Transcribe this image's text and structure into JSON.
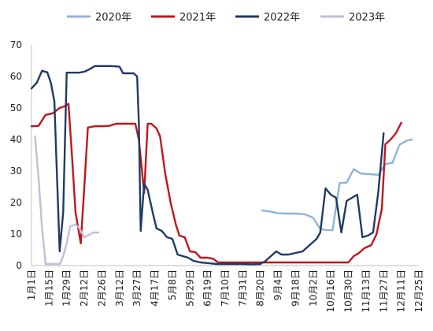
{
  "chart_data": {
    "type": "line",
    "title": "",
    "xlabel": "",
    "ylabel": "",
    "ylim": [
      0,
      70
    ],
    "yticks": [
      "0",
      "10",
      "20",
      "30",
      "40",
      "50",
      "60",
      "70"
    ],
    "categories": [
      "1月1日",
      "1月15日",
      "1月29日",
      "2月12日",
      "2月26日",
      "3月12日",
      "3月27日",
      "4月17日",
      "5月8日",
      "5月29日",
      "6月19日",
      "7月10日",
      "7月31日",
      "8月20日",
      "9月4日",
      "9月18日",
      "10月2日",
      "10月16日",
      "10月30日",
      "11月13日",
      "11月27日",
      "12月11日",
      "12月25日"
    ],
    "legend_position": "top",
    "grid": false,
    "series": [
      {
        "name": "2020年",
        "color": "#8fb4d9",
        "points": [
          [
            13.1,
            17.5
          ],
          [
            13.5,
            17.2
          ],
          [
            14.0,
            16.6
          ],
          [
            14.5,
            16.5
          ],
          [
            15.0,
            16.5
          ],
          [
            15.5,
            16.3
          ],
          [
            16.0,
            15.2
          ],
          [
            16.4,
            11.6
          ],
          [
            16.7,
            11.3
          ],
          [
            17.1,
            11.2
          ],
          [
            17.5,
            26.2
          ],
          [
            17.9,
            26.3
          ],
          [
            18.3,
            30.6
          ],
          [
            18.7,
            29.2
          ],
          [
            19.2,
            29.0
          ],
          [
            19.7,
            28.8
          ],
          [
            20.1,
            32.2
          ],
          [
            20.5,
            32.6
          ],
          [
            20.9,
            38.3
          ],
          [
            21.3,
            39.6
          ],
          [
            21.6,
            40.0
          ]
        ]
      },
      {
        "name": "2021年",
        "color": "#c0161d",
        "points": [
          [
            0.0,
            44.2
          ],
          [
            0.4,
            44.3
          ],
          [
            0.8,
            47.8
          ],
          [
            1.2,
            48.3
          ],
          [
            1.6,
            50.0
          ],
          [
            1.9,
            50.6
          ],
          [
            2.1,
            51.3
          ],
          [
            2.3,
            35.0
          ],
          [
            2.5,
            17.0
          ],
          [
            2.8,
            7.0
          ],
          [
            3.0,
            25.0
          ],
          [
            3.2,
            43.8
          ],
          [
            3.6,
            44.2
          ],
          [
            4.0,
            44.2
          ],
          [
            4.4,
            44.3
          ],
          [
            4.8,
            45.0
          ],
          [
            5.2,
            45.0
          ],
          [
            5.6,
            45.0
          ],
          [
            5.9,
            45.0
          ],
          [
            6.1,
            40.0
          ],
          [
            6.4,
            23.0
          ],
          [
            6.6,
            45.0
          ],
          [
            6.8,
            45.0
          ],
          [
            7.1,
            43.5
          ],
          [
            7.3,
            41.0
          ],
          [
            7.6,
            29.0
          ],
          [
            7.9,
            20.0
          ],
          [
            8.2,
            13.0
          ],
          [
            8.4,
            9.5
          ],
          [
            8.7,
            9.0
          ],
          [
            9.0,
            4.5
          ],
          [
            9.3,
            4.3
          ],
          [
            9.6,
            2.5
          ],
          [
            10.0,
            2.5
          ],
          [
            10.3,
            2.2
          ],
          [
            10.6,
            1.0
          ],
          [
            11.0,
            1.0
          ],
          [
            11.5,
            1.0
          ],
          [
            12.0,
            1.0
          ],
          [
            13.0,
            1.0
          ],
          [
            14.0,
            1.0
          ],
          [
            15.0,
            1.0
          ],
          [
            16.0,
            1.0
          ],
          [
            17.0,
            1.0
          ],
          [
            17.5,
            1.0
          ],
          [
            18.0,
            1.0
          ],
          [
            18.3,
            3.0
          ],
          [
            18.6,
            4.0
          ],
          [
            18.9,
            5.5
          ],
          [
            19.3,
            6.5
          ],
          [
            19.6,
            10.0
          ],
          [
            19.9,
            18.0
          ],
          [
            20.1,
            38.5
          ],
          [
            20.4,
            40.0
          ],
          [
            20.7,
            42.0
          ],
          [
            21.0,
            45.3
          ]
        ]
      },
      {
        "name": "2022年",
        "color": "#1f3b64",
        "points": [
          [
            0.0,
            56.2
          ],
          [
            0.3,
            58.0
          ],
          [
            0.6,
            61.8
          ],
          [
            0.9,
            61.3
          ],
          [
            1.1,
            58.0
          ],
          [
            1.3,
            52.0
          ],
          [
            1.4,
            36.0
          ],
          [
            1.6,
            4.5
          ],
          [
            1.8,
            17.0
          ],
          [
            2.0,
            61.2
          ],
          [
            2.3,
            61.2
          ],
          [
            2.7,
            61.2
          ],
          [
            3.0,
            61.5
          ],
          [
            3.3,
            62.3
          ],
          [
            3.6,
            63.3
          ],
          [
            4.0,
            63.3
          ],
          [
            4.5,
            63.3
          ],
          [
            5.0,
            63.1
          ],
          [
            5.2,
            61.0
          ],
          [
            5.5,
            61.0
          ],
          [
            5.8,
            61.0
          ],
          [
            6.0,
            60.0
          ],
          [
            6.1,
            45.0
          ],
          [
            6.2,
            11.0
          ],
          [
            6.4,
            26.0
          ],
          [
            6.6,
            24.0
          ],
          [
            6.9,
            16.5
          ],
          [
            7.1,
            11.8
          ],
          [
            7.4,
            11.0
          ],
          [
            7.7,
            9.0
          ],
          [
            8.0,
            8.5
          ],
          [
            8.3,
            3.5
          ],
          [
            8.6,
            3.0
          ],
          [
            8.9,
            2.5
          ],
          [
            9.2,
            1.5
          ],
          [
            9.6,
            1.0
          ],
          [
            10.0,
            0.8
          ],
          [
            10.5,
            0.5
          ],
          [
            11.0,
            0.5
          ],
          [
            11.5,
            0.5
          ],
          [
            12.0,
            0.5
          ],
          [
            12.5,
            0.4
          ],
          [
            13.0,
            0.5
          ],
          [
            13.3,
            1.5
          ],
          [
            13.6,
            3.0
          ],
          [
            13.9,
            4.5
          ],
          [
            14.2,
            3.5
          ],
          [
            14.6,
            3.5
          ],
          [
            15.0,
            4.0
          ],
          [
            15.4,
            4.5
          ],
          [
            15.8,
            6.5
          ],
          [
            16.2,
            8.5
          ],
          [
            16.4,
            10.5
          ],
          [
            16.7,
            24.5
          ],
          [
            17.0,
            22.5
          ],
          [
            17.3,
            21.5
          ],
          [
            17.6,
            10.5
          ],
          [
            17.9,
            20.5
          ],
          [
            18.2,
            21.5
          ],
          [
            18.5,
            22.5
          ],
          [
            18.8,
            9.0
          ],
          [
            19.1,
            9.5
          ],
          [
            19.4,
            10.5
          ],
          [
            19.7,
            23.5
          ],
          [
            20.0,
            42.0
          ]
        ]
      },
      {
        "name": "2023年",
        "color": "#c3bed8",
        "points": [
          [
            0.2,
            41.0
          ],
          [
            0.4,
            28.0
          ],
          [
            0.6,
            12.0
          ],
          [
            0.8,
            0.5
          ],
          [
            1.2,
            0.5
          ],
          [
            1.6,
            0.5
          ],
          [
            1.8,
            3.0
          ],
          [
            2.0,
            7.0
          ],
          [
            2.2,
            12.5
          ],
          [
            2.5,
            13.0
          ],
          [
            2.7,
            12.0
          ],
          [
            3.0,
            9.0
          ],
          [
            3.2,
            9.5
          ],
          [
            3.5,
            10.5
          ],
          [
            3.8,
            10.5
          ]
        ]
      }
    ]
  }
}
